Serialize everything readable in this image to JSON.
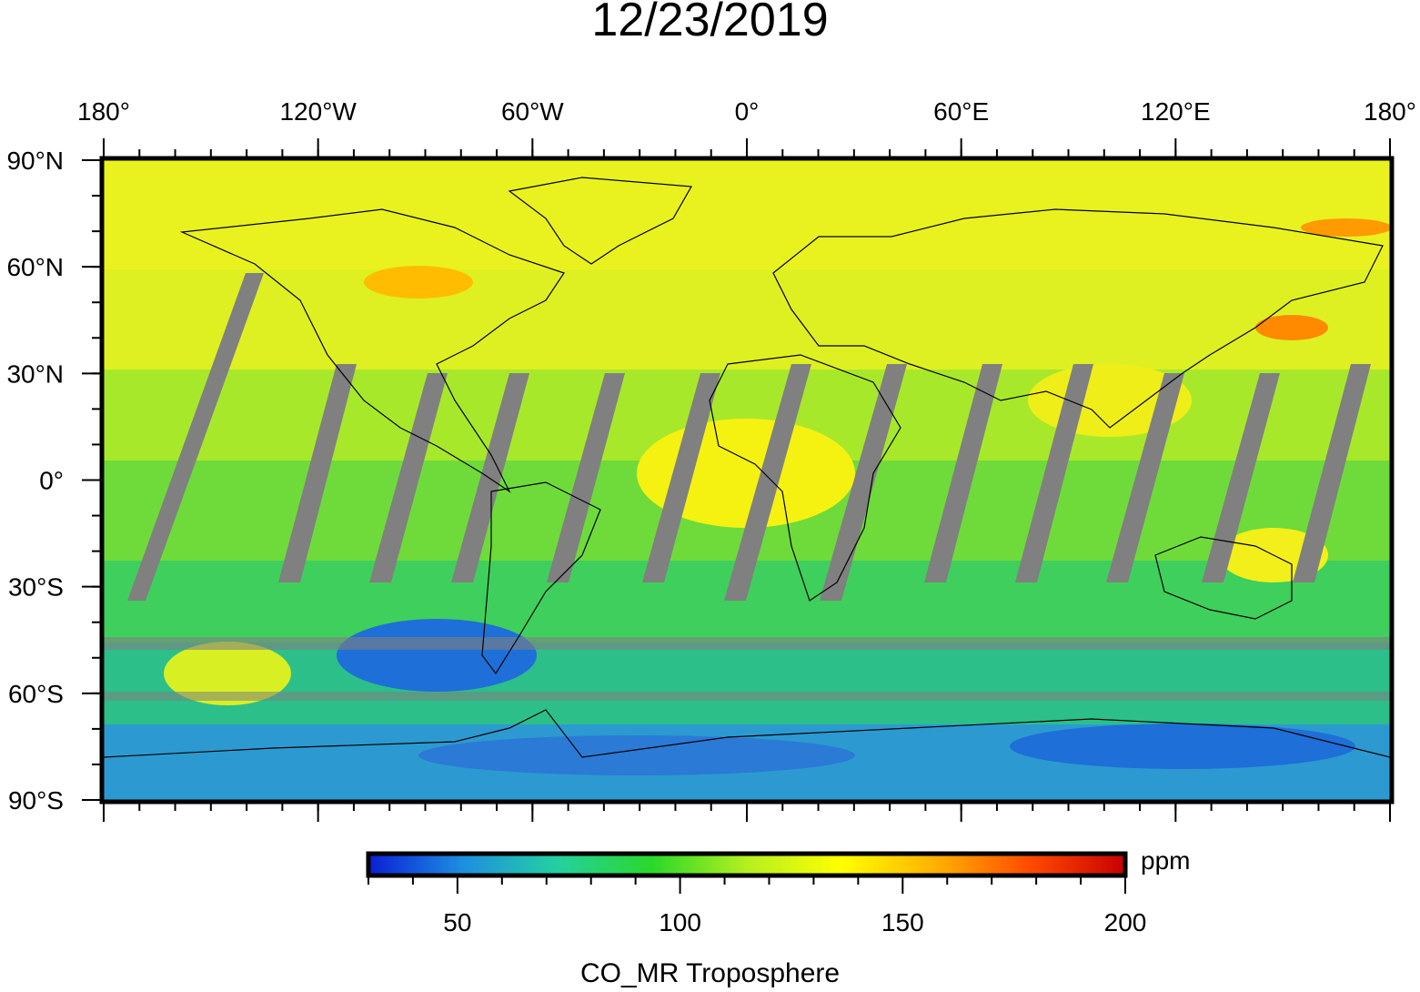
{
  "title": "12/23/2019",
  "map": {
    "lon_ticks": [
      "180°",
      "120°W",
      "60°W",
      "0°",
      "60°E",
      "120°E",
      "180°"
    ],
    "lat_ticks": [
      "90°N",
      "60°N",
      "30°N",
      "0°",
      "30°S",
      "60°S",
      "90°S"
    ],
    "missing_color": "#808080",
    "coastline_color": "#000000"
  },
  "colorbar": {
    "unit": "ppm",
    "label": "CO_MR Troposphere",
    "range": [
      30,
      200
    ],
    "ticks": [
      "50",
      "100",
      "150",
      "200"
    ],
    "tick_values": [
      50,
      100,
      150,
      200
    ],
    "colors": [
      "#0a1fd6",
      "#1e8fe0",
      "#25d0a0",
      "#2ad82a",
      "#b5ef20",
      "#ffff00",
      "#ffb000",
      "#ff4a00",
      "#c80000"
    ]
  }
}
